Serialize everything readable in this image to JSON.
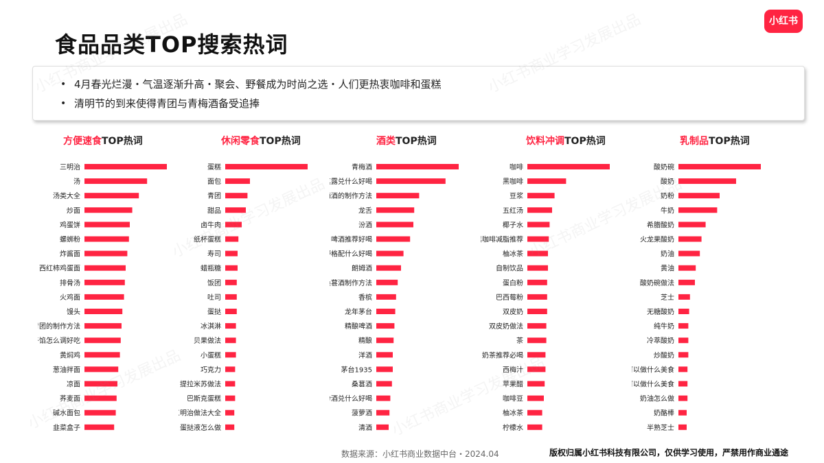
{
  "logo": "小红书",
  "title": "食品品类TOP搜索热词",
  "bullets": [
    "4月春光烂漫・气温逐渐升高・聚会、野餐成为时尚之选・人们更热衷咖啡和蛋糕",
    "清明节的到来使得青团与青梅酒备受追捧"
  ],
  "watermark": "小红书商业学习发展出品",
  "colors": {
    "accent": "#ff2442"
  },
  "chart_data": [
    {
      "type": "bar",
      "orientation": "horizontal",
      "title_red": "方便速食",
      "title_rest": "TOP热词",
      "categories": [
        "三明治",
        "汤",
        "汤类大全",
        "炒面",
        "鸡蛋饼",
        "螺蛳粉",
        "炸酱面",
        "西红柿鸡蛋面",
        "排骨汤",
        "火鸡面",
        "馒头",
        "青团的制作方法",
        "饺子馅怎么调好吃",
        "黄焖鸡",
        "葱油拌面",
        "凉面",
        "荞麦面",
        "碱水面包",
        "韭菜盒子"
      ],
      "values": [
        100,
        76,
        66,
        58,
        55,
        54,
        52,
        50,
        49,
        48,
        46,
        45,
        44,
        43,
        41,
        40,
        39,
        38,
        36
      ]
    },
    {
      "type": "bar",
      "orientation": "horizontal",
      "title_red": "休闲零食",
      "title_rest": "TOP热词",
      "categories": [
        "蛋糕",
        "面包",
        "青团",
        "甜品",
        "卤牛肉",
        "纸杯蛋糕",
        "寿司",
        "蜡瓶糖",
        "饭团",
        "吐司",
        "蛋挞",
        "冰淇淋",
        "贝果做法",
        "小蛋糕",
        "巧克力",
        "提拉米苏做法",
        "巴斯克蛋糕",
        "三明治做法大全",
        "蛋挞液怎么做"
      ],
      "values": [
        100,
        30,
        27,
        25,
        20,
        16,
        15,
        15,
        14,
        14,
        14,
        13,
        13,
        13,
        12,
        12,
        12,
        11,
        11
      ]
    },
    {
      "type": "bar",
      "orientation": "horizontal",
      "title_red": "酒类",
      "title_rest": "TOP热词",
      "categories": [
        "青梅酒",
        "真露兑什么好喝",
        "青梅酒的制作方法",
        "龙舌",
        "汾酒",
        "啤酒推荐好喝",
        "野格配什么好喝",
        "朗姆酒",
        "桑葚酒制作方法",
        "香槟",
        "龙年茅台",
        "精酿啤酒",
        "精酿",
        "洋酒",
        "茅台1935",
        "桑葚酒",
        "汾酒兑什么好喝",
        "菠萝酒",
        "清酒"
      ],
      "values": [
        100,
        84,
        52,
        46,
        45,
        41,
        33,
        30,
        26,
        24,
        23,
        22,
        21,
        20,
        20,
        19,
        17,
        16,
        15
      ]
    },
    {
      "type": "bar",
      "orientation": "horizontal",
      "title_red": "饮料冲调",
      "title_rest": "TOP热词",
      "categories": [
        "咖啡",
        "黑咖啡",
        "豆浆",
        "五红汤",
        "椰子水",
        "黑咖啡减脂推荐",
        "柚冰茶",
        "自制饮品",
        "蛋白粉",
        "巴西莓粉",
        "双皮奶",
        "双皮奶做法",
        "茶",
        "奶茶推荐必喝",
        "西梅汁",
        "苹果醋",
        "咖啡豆",
        "柚冰茶",
        "柠檬水"
      ],
      "values": [
        100,
        47,
        33,
        30,
        27,
        26,
        25,
        25,
        24,
        24,
        24,
        23,
        23,
        22,
        22,
        21,
        20,
        18,
        18
      ]
    },
    {
      "type": "bar",
      "orientation": "horizontal",
      "title_red": "乳制品",
      "title_rest": "TOP热词",
      "categories": [
        "酸奶碗",
        "酸奶",
        "奶粉",
        "牛奶",
        "希腊酸奶",
        "火龙果酸奶",
        "奶油",
        "黄油",
        "酸奶碗做法",
        "芝士",
        "无糖酸奶",
        "纯牛奶",
        "冷萃酸奶",
        "炒酸奶",
        "黄油可以做什么美食",
        "芝士碎可以做什么美食",
        "奶油怎么做",
        "奶酪棒",
        "半熟芝士"
      ],
      "values": [
        100,
        70,
        50,
        47,
        33,
        28,
        26,
        21,
        20,
        14,
        13,
        12,
        12,
        12,
        11,
        11,
        11,
        10,
        10
      ]
    }
  ],
  "footer": {
    "source": "数据来源：小红书商业数据中台・2024.04",
    "copyright": "版权归属小红书科技有限公司，仅供学习使用，严禁用作商业通途"
  }
}
